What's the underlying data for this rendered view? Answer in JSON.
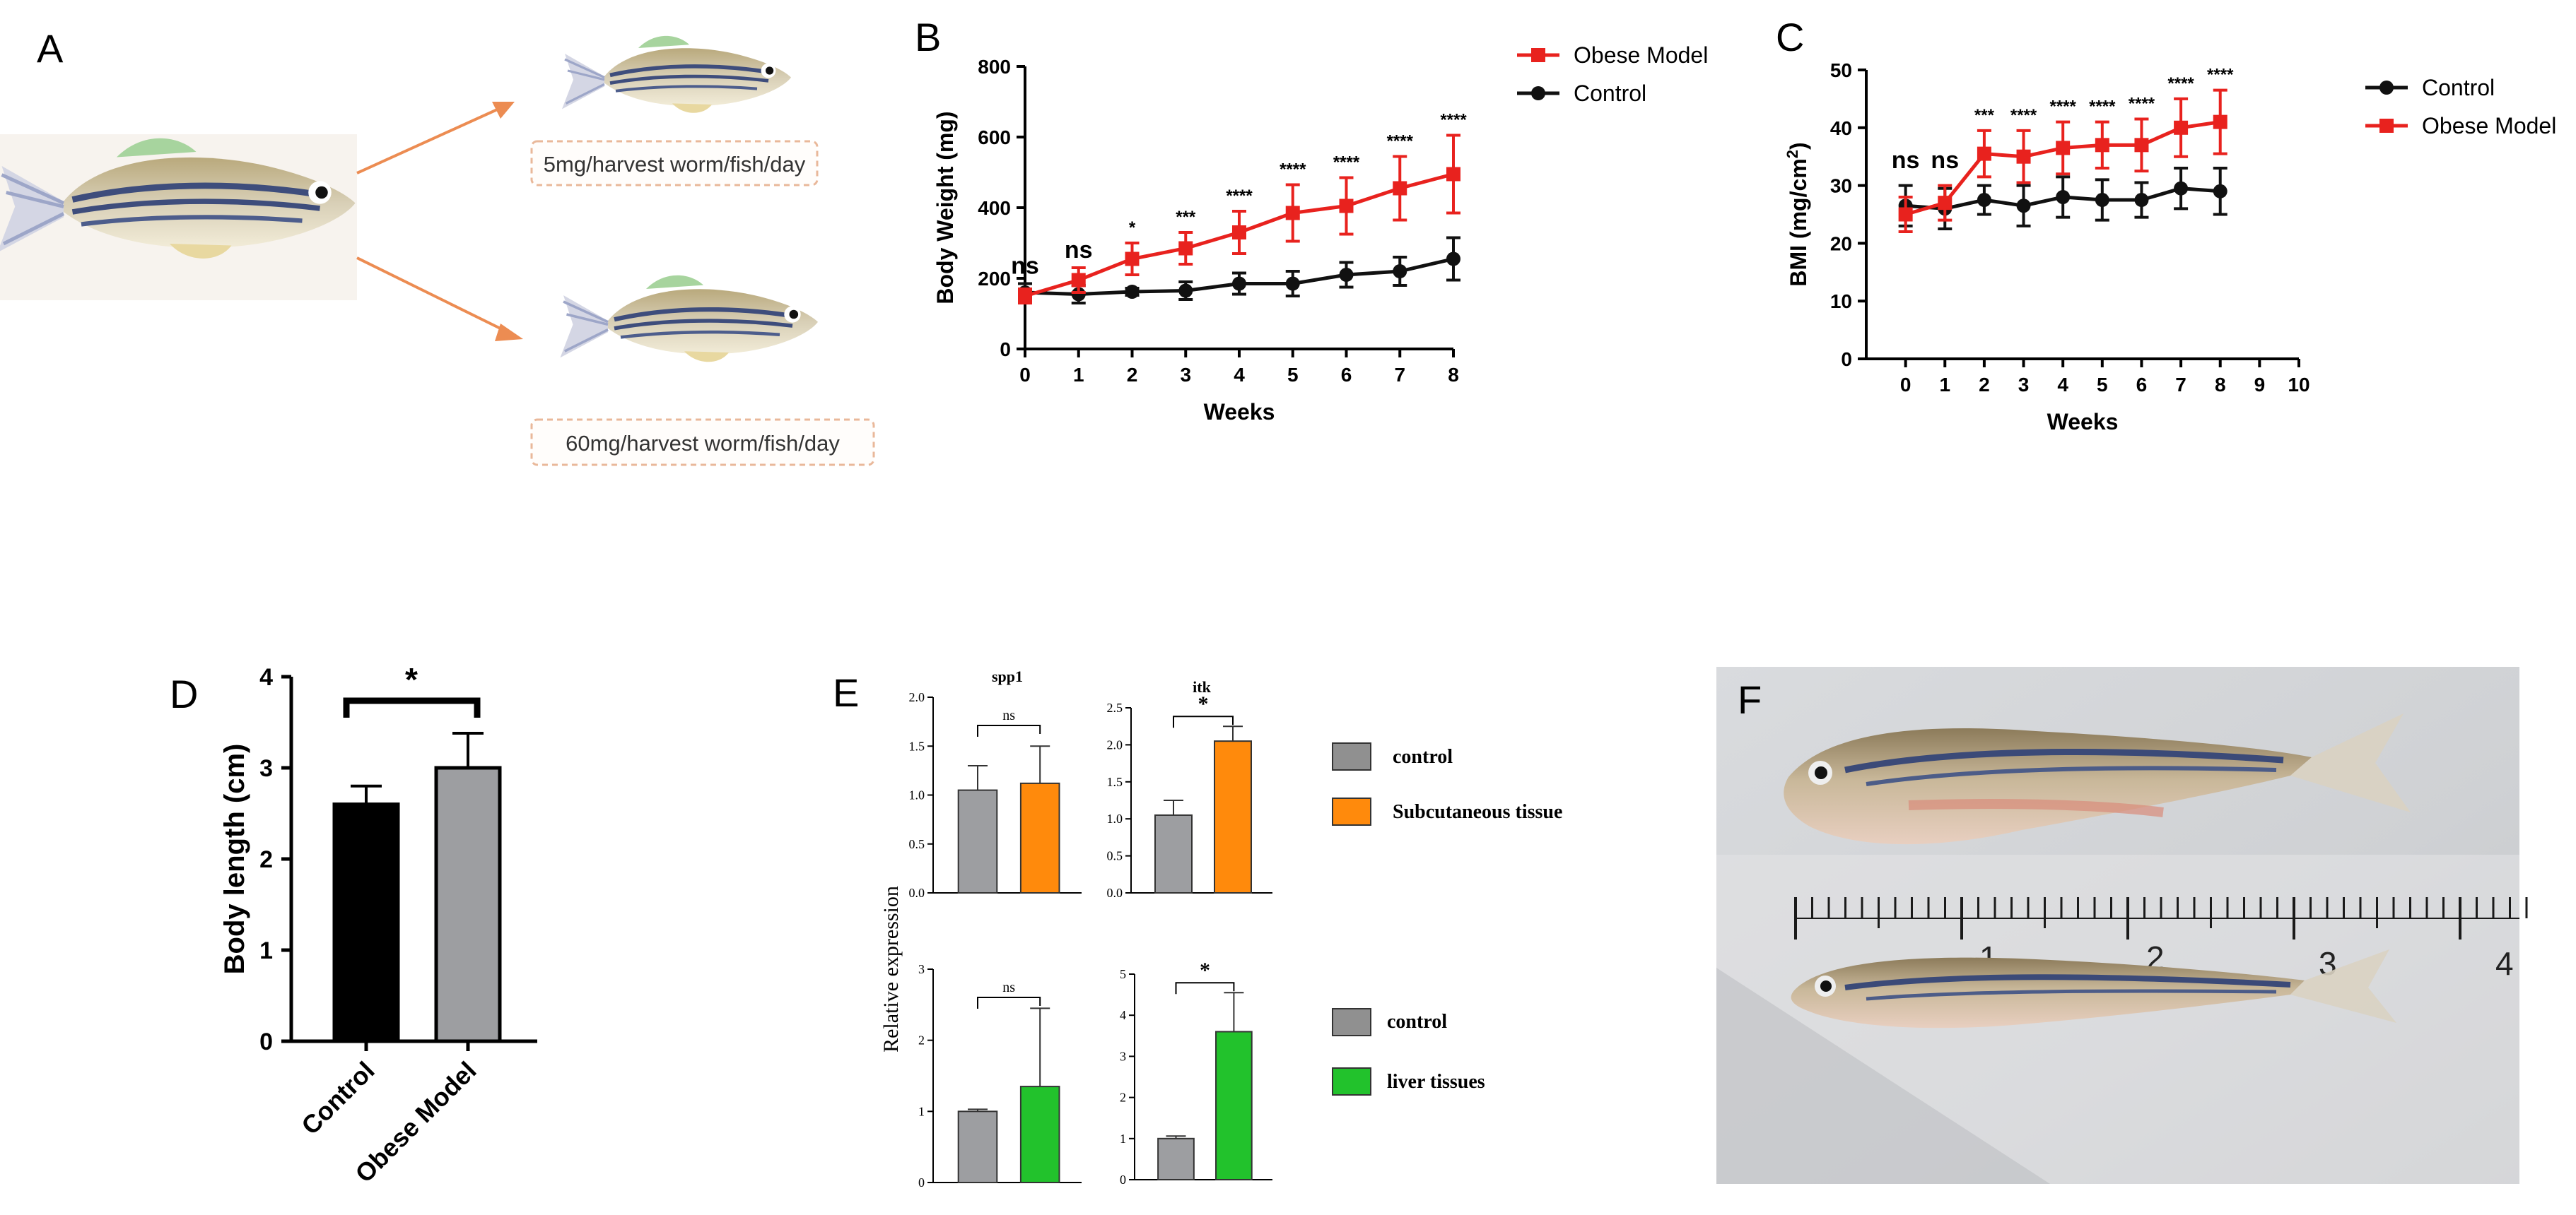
{
  "colors": {
    "obese": "#e8221e",
    "control_line": "#111111",
    "gray_bar": "#9d9ea1",
    "orange": "#ff8a0c",
    "green": "#22c22c",
    "arrow": "#ec8c52",
    "dash": "#e9b89a"
  },
  "panelA": {
    "letter": "A",
    "low_label": "5mg/harvest worm/fish/day",
    "high_label": "60mg/harvest worm/fish/day"
  },
  "panelB": {
    "letter": "B"
  },
  "panelC": {
    "letter": "C"
  },
  "panelD": {
    "letter": "D"
  },
  "panelE": {
    "letter": "E",
    "legend_top": [
      {
        "label": "control",
        "color": "#909090"
      },
      {
        "label": "Subcutaneous tissue",
        "color": "#ff8a0c"
      }
    ],
    "legend_bottom": [
      {
        "label": "control",
        "color": "#909090"
      },
      {
        "label": "liver tissues",
        "color": "#22c22c"
      }
    ]
  },
  "panelF": {
    "letter": "F",
    "ruler_numbers": [
      "1",
      "2",
      "3",
      "4"
    ]
  },
  "chart_data": [
    {
      "id": "B",
      "type": "line",
      "title": "",
      "xlabel": "Weeks",
      "ylabel": "Body Weight (mg)",
      "x": [
        0,
        1,
        2,
        3,
        4,
        5,
        6,
        7,
        8
      ],
      "xlim": [
        0,
        8
      ],
      "ylim": [
        0,
        800
      ],
      "xticks": [
        "0",
        "1",
        "2",
        "3",
        "4",
        "5",
        "6",
        "7",
        "8"
      ],
      "yticks": [
        "0",
        "200",
        "400",
        "600",
        "800"
      ],
      "series": [
        {
          "name": "Obese Model",
          "color": "#e8221e",
          "marker": "square",
          "values": [
            150,
            195,
            255,
            285,
            330,
            385,
            405,
            455,
            495
          ],
          "errors": [
            20,
            35,
            45,
            45,
            60,
            80,
            80,
            90,
            110
          ]
        },
        {
          "name": "Control",
          "color": "#111111",
          "marker": "circle",
          "values": [
            160,
            155,
            162,
            165,
            185,
            185,
            210,
            220,
            255
          ],
          "errors": [
            25,
            25,
            10,
            25,
            30,
            35,
            35,
            40,
            60
          ]
        }
      ],
      "significance": [
        "ns",
        "ns",
        "*",
        "***",
        "****",
        "****",
        "****",
        "****",
        "****"
      ],
      "legend": "top-right"
    },
    {
      "id": "C",
      "type": "line",
      "title": "",
      "xlabel": "Weeks",
      "ylabel": "BMI (mg/cm",
      "ylabel_sup": "2",
      "ylabel_end": ")",
      "x": [
        0,
        1,
        2,
        3,
        4,
        5,
        6,
        7,
        8
      ],
      "xlim": [
        -1,
        10
      ],
      "ylim": [
        0,
        50
      ],
      "xticks": [
        "0",
        "1",
        "2",
        "3",
        "4",
        "5",
        "6",
        "7",
        "8",
        "9",
        "10"
      ],
      "yticks": [
        "0",
        "10",
        "20",
        "30",
        "40",
        "50"
      ],
      "series": [
        {
          "name": "Control",
          "color": "#111111",
          "marker": "circle",
          "values": [
            26.5,
            26,
            27.5,
            26.5,
            28,
            27.5,
            27.5,
            29.5,
            29
          ],
          "errors": [
            3.5,
            3.5,
            2.5,
            3.5,
            3.5,
            3.5,
            3,
            3.5,
            4
          ]
        },
        {
          "name": "Obese Model",
          "color": "#e8221e",
          "marker": "square",
          "values": [
            25,
            27,
            35.5,
            35,
            36.5,
            37,
            37,
            40,
            41
          ],
          "errors": [
            3,
            3,
            4,
            4.5,
            4.5,
            4,
            4.5,
            5,
            5.5
          ]
        }
      ],
      "significance": [
        "ns",
        "ns",
        "***",
        "****",
        "****",
        "****",
        "****",
        "****",
        "****"
      ],
      "legend": "top-right"
    },
    {
      "id": "D",
      "type": "bar",
      "title": "",
      "xlabel": "",
      "ylabel": "Body length (cm)",
      "categories": [
        "Control",
        "Obese Model"
      ],
      "values": [
        2.6,
        3.0
      ],
      "errors": [
        0.2,
        0.38
      ],
      "colors": [
        "#000000",
        "#9d9ea1"
      ],
      "ylim": [
        0,
        4
      ],
      "yticks": [
        "0",
        "1",
        "2",
        "3",
        "4"
      ],
      "significance": "*"
    },
    {
      "id": "E1",
      "type": "bar",
      "title": "spp1",
      "categories": [
        "control",
        "Subcutaneous tissue"
      ],
      "values": [
        1.05,
        1.12
      ],
      "errors": [
        0.25,
        0.38
      ],
      "colors": [
        "#9d9ea1",
        "#ff8a0c"
      ],
      "ylim": [
        0,
        2.0
      ],
      "yticks": [
        "0.0",
        "0.5",
        "1.0",
        "1.5",
        "2.0"
      ],
      "significance": "ns"
    },
    {
      "id": "E2",
      "type": "bar",
      "title": "itk",
      "categories": [
        "control",
        "Subcutaneous tissue"
      ],
      "values": [
        1.05,
        2.05
      ],
      "errors": [
        0.2,
        0.2
      ],
      "colors": [
        "#9d9ea1",
        "#ff8a0c"
      ],
      "ylim": [
        0,
        2.5
      ],
      "yticks": [
        "0.0",
        "0.5",
        "1.0",
        "1.5",
        "2.0",
        "2.5"
      ],
      "significance": "*"
    },
    {
      "id": "E3",
      "type": "bar",
      "title": "",
      "ylabel": "Relative expression",
      "categories": [
        "control",
        "liver tissues"
      ],
      "values": [
        1.0,
        1.35
      ],
      "errors": [
        0.03,
        1.1
      ],
      "colors": [
        "#9d9ea1",
        "#22c22c"
      ],
      "ylim": [
        0,
        3
      ],
      "yticks": [
        "0",
        "1",
        "2",
        "3"
      ],
      "significance": "ns"
    },
    {
      "id": "E4",
      "type": "bar",
      "title": "",
      "categories": [
        "control",
        "liver tissues"
      ],
      "values": [
        1.0,
        3.6
      ],
      "errors": [
        0.06,
        0.95
      ],
      "colors": [
        "#9d9ea1",
        "#22c22c"
      ],
      "ylim": [
        0,
        5
      ],
      "yticks": [
        "0",
        "1",
        "2",
        "3",
        "4",
        "5"
      ],
      "significance": "*"
    }
  ]
}
